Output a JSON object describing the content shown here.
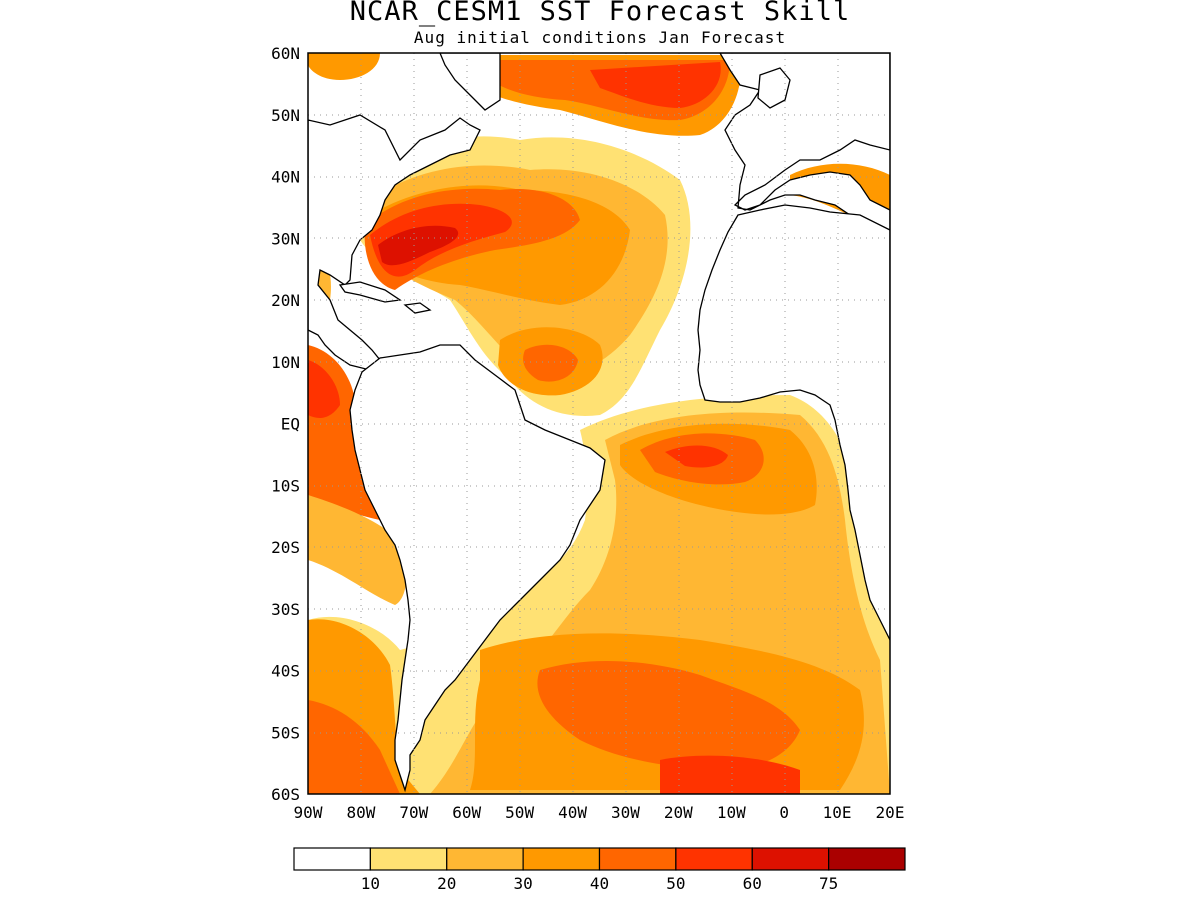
{
  "title": "NCAR_CESM1 SST Forecast Skill",
  "subtitle": "Aug initial conditions  Jan Forecast",
  "lat_labels": [
    "60N",
    "50N",
    "40N",
    "30N",
    "20N",
    "10N",
    "EQ",
    "10S",
    "20S",
    "30S",
    "40S",
    "50S",
    "60S"
  ],
  "lon_labels": [
    "90W",
    "80W",
    "70W",
    "60W",
    "50W",
    "40W",
    "30W",
    "20W",
    "10W",
    "0",
    "10E",
    "20E"
  ],
  "colorbar": {
    "colors": [
      "#ffffff",
      "#ffe173",
      "#ffb733",
      "#ff9900",
      "#ff6600",
      "#ff3300",
      "#dd1100",
      "#aa0000"
    ],
    "labels": [
      "10",
      "20",
      "30",
      "40",
      "50",
      "60",
      "75"
    ]
  },
  "map_extent": {
    "lon": [
      -90,
      20
    ],
    "lat": [
      -60,
      60
    ]
  }
}
